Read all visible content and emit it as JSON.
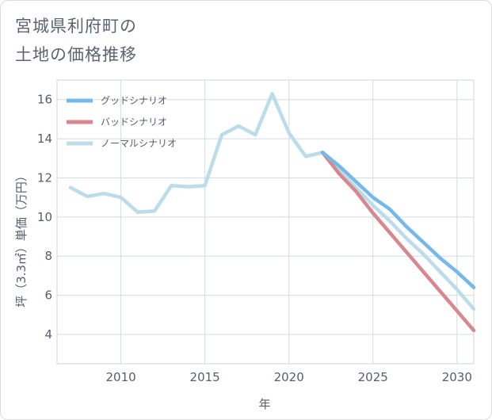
{
  "chart_data": {
    "type": "line",
    "title": "宮城県利府町の土地の価格推移",
    "title_lines": [
      "宮城県利府町の",
      "土地の価格推移"
    ],
    "xlabel": "年",
    "ylabel": "坪（3.3㎡）単価（万円）",
    "xlim": [
      2006.2,
      2031
    ],
    "ylim": [
      2.5,
      17
    ],
    "x_ticks": [
      2010,
      2015,
      2020,
      2025,
      2030
    ],
    "y_ticks": [
      4,
      6,
      8,
      10,
      12,
      14,
      16
    ],
    "grid": true,
    "legend_position": "top-left",
    "series": [
      {
        "name": "グッドシナリオ",
        "color": "#74b9ea",
        "x": [
          2022,
          2023,
          2024,
          2025,
          2026,
          2027,
          2028,
          2029,
          2030,
          2031
        ],
        "y": [
          13.3,
          12.6,
          11.8,
          11.0,
          10.4,
          9.5,
          8.7,
          7.9,
          7.2,
          6.4
        ]
      },
      {
        "name": "バッドシナリオ",
        "color": "#d9878e",
        "x": [
          2022,
          2023,
          2024,
          2025,
          2026,
          2027,
          2028,
          2029,
          2030,
          2031
        ],
        "y": [
          13.3,
          12.2,
          11.3,
          10.2,
          9.2,
          8.2,
          7.2,
          6.2,
          5.2,
          4.2
        ]
      },
      {
        "name": "ノーマルシナリオ",
        "color": "#bcdce9",
        "x": [
          2007,
          2008,
          2009,
          2010,
          2011,
          2012,
          2013,
          2014,
          2015,
          2016,
          2017,
          2018,
          2019,
          2020,
          2021,
          2022,
          2023,
          2024,
          2025,
          2026,
          2027,
          2028,
          2029,
          2030,
          2031
        ],
        "y": [
          11.5,
          11.05,
          11.2,
          11.0,
          10.25,
          10.3,
          11.6,
          11.55,
          11.6,
          14.2,
          14.65,
          14.2,
          16.3,
          14.3,
          13.1,
          13.3,
          12.35,
          11.5,
          10.6,
          9.8,
          8.9,
          8.1,
          7.2,
          6.3,
          5.3
        ]
      }
    ]
  }
}
